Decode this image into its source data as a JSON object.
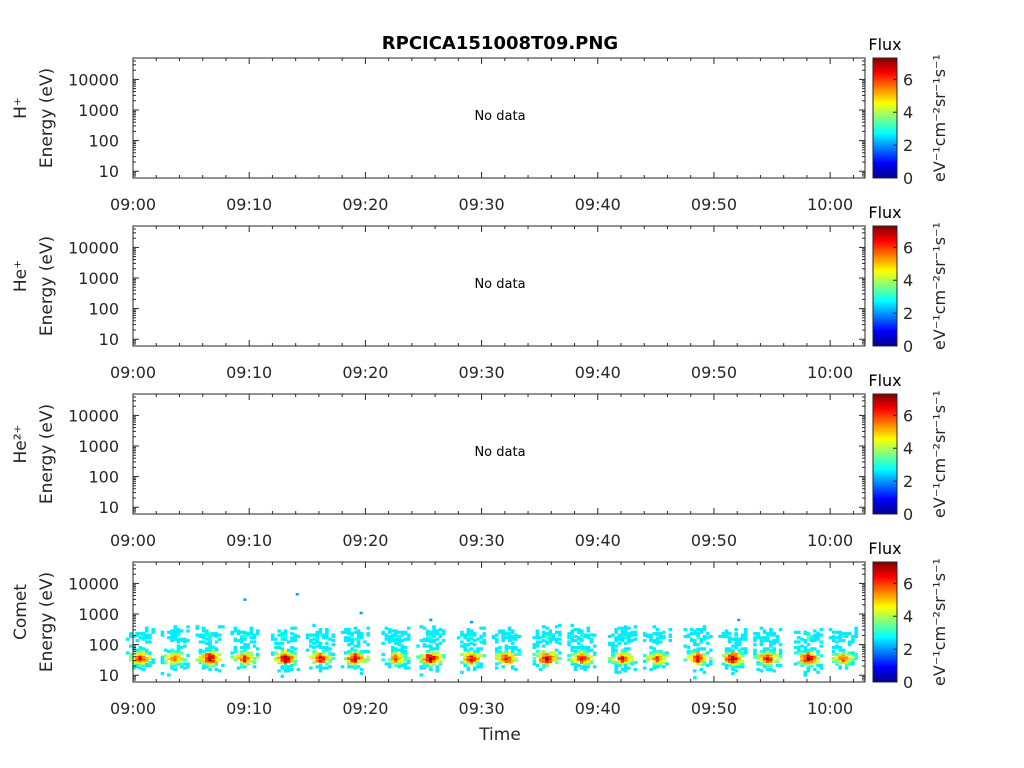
{
  "title": "RPCICA151008T09.PNG",
  "x_tick_labels": [
    "09:00",
    "09:10",
    "09:20",
    "09:30",
    "09:40",
    "09:50",
    "10:00"
  ],
  "x_axis_label": "Time",
  "y_tick_labels": [
    "10",
    "100",
    "1000",
    "10000"
  ],
  "colorbar": {
    "title": "Flux",
    "unit_label": "eV⁻¹cm⁻²sr⁻¹s⁻¹",
    "tick_labels": [
      "0",
      "2",
      "4",
      "6"
    ],
    "range": [
      0,
      7.3
    ],
    "colormap": "jet"
  },
  "no_data_text": "No data",
  "panels": [
    {
      "species": "H⁺",
      "ylabel": "Energy (eV)",
      "has_data": false
    },
    {
      "species": "He⁺",
      "ylabel": "Energy (eV)",
      "has_data": false
    },
    {
      "species": "He²⁺",
      "ylabel": "Energy (eV)",
      "has_data": false
    },
    {
      "species": "Comet",
      "ylabel": "Energy (eV)",
      "has_data": true
    }
  ],
  "chart_data": {
    "type": "heatmap",
    "title": "RPCICA151008T09.PNG",
    "xlabel": "Time",
    "ylabel": "Energy (eV)",
    "x_range": [
      "09:00",
      "10:03"
    ],
    "y_scale": "log",
    "ylim": [
      6,
      50000
    ],
    "color_range": [
      0,
      7.3
    ],
    "bursts": [
      {
        "time_min": 0.5,
        "peak_flux": 6.5
      },
      {
        "time_min": 3.5,
        "peak_flux": 6.0
      },
      {
        "time_min": 6.5,
        "peak_flux": 7.0
      },
      {
        "time_min": 9.5,
        "peak_flux": 6.5
      },
      {
        "time_min": 13.0,
        "peak_flux": 7.0
      },
      {
        "time_min": 16.0,
        "peak_flux": 6.5
      },
      {
        "time_min": 19.0,
        "peak_flux": 7.0
      },
      {
        "time_min": 22.5,
        "peak_flux": 6.0
      },
      {
        "time_min": 25.5,
        "peak_flux": 7.0
      },
      {
        "time_min": 29.0,
        "peak_flux": 6.5
      },
      {
        "time_min": 32.0,
        "peak_flux": 6.5
      },
      {
        "time_min": 35.5,
        "peak_flux": 7.0
      },
      {
        "time_min": 38.5,
        "peak_flux": 6.5
      },
      {
        "time_min": 42.0,
        "peak_flux": 6.5
      },
      {
        "time_min": 45.0,
        "peak_flux": 6.0
      },
      {
        "time_min": 48.5,
        "peak_flux": 6.5
      },
      {
        "time_min": 51.5,
        "peak_flux": 7.0
      },
      {
        "time_min": 54.5,
        "peak_flux": 6.5
      },
      {
        "time_min": 58.0,
        "peak_flux": 7.0
      },
      {
        "time_min": 61.0,
        "peak_flux": 6.0
      }
    ]
  }
}
